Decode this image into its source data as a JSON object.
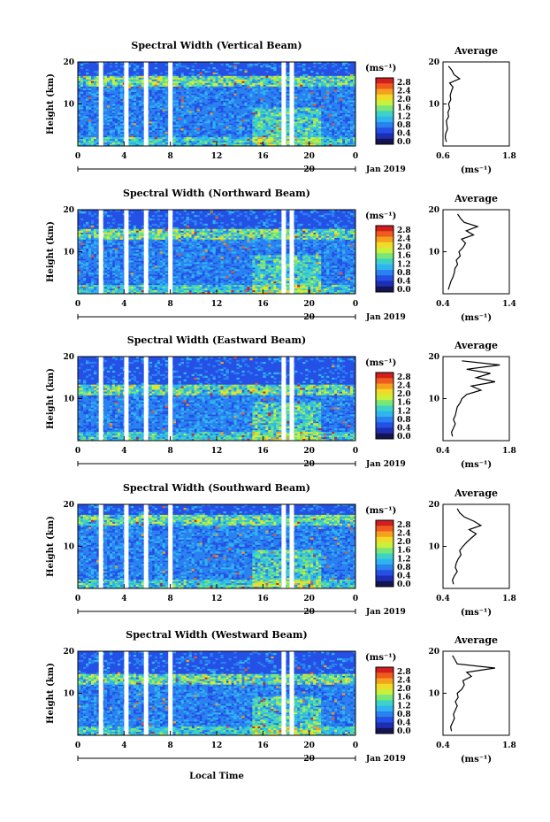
{
  "colors": {
    "scale": [
      "#141450",
      "#1e2eb4",
      "#2450e6",
      "#2a82f0",
      "#30b4f0",
      "#3cd2c8",
      "#78e678",
      "#c8f03c",
      "#f0dc28",
      "#f5a01e",
      "#ef5a1e",
      "#d21e1e"
    ]
  },
  "chart_data": [
    {
      "type": "heatmap",
      "title": "Spectral Width (Vertical Beam)",
      "ylabel": "Height (km)",
      "ylim": [
        0,
        20
      ],
      "yticks": [
        "20",
        "10"
      ],
      "xlim": [
        0,
        24
      ],
      "xticks": [
        "0",
        "4",
        "8",
        "12",
        "16",
        "20",
        "0"
      ],
      "date_tick": "20",
      "date_label": "Jan 2019",
      "colorbar_unit": "(ms⁻¹)",
      "colorbar_ticks": [
        "2.8",
        "2.4",
        "2.0",
        "1.6",
        "1.2",
        "0.8",
        "0.4",
        "0.0"
      ],
      "gaps": [
        2.0,
        4.2,
        5.9,
        8.0,
        17.8,
        18.5
      ],
      "clear_above": 16.5,
      "avg": {
        "title": "Average",
        "xlabel": "(ms⁻¹)",
        "xlim": [
          0.6,
          1.8
        ],
        "xticks": [
          "0.6",
          "1.8"
        ],
        "yticks": [
          "20",
          "10"
        ],
        "height": [
          1,
          2,
          3,
          4,
          5,
          6,
          7,
          8,
          9,
          10,
          11,
          12,
          13,
          14,
          15,
          16,
          17,
          18,
          19
        ],
        "width": [
          0.66,
          0.64,
          0.65,
          0.68,
          0.67,
          0.66,
          0.7,
          0.69,
          0.72,
          0.7,
          0.74,
          0.73,
          0.75,
          0.78,
          0.72,
          0.9,
          0.8,
          0.76,
          0.7
        ]
      }
    },
    {
      "type": "heatmap",
      "title": "Spectral Width (Northward Beam)",
      "ylabel": "Height (km)",
      "ylim": [
        0,
        20
      ],
      "yticks": [
        "20",
        "10"
      ],
      "xlim": [
        0,
        24
      ],
      "xticks": [
        "0",
        "4",
        "8",
        "12",
        "16",
        "20",
        "0"
      ],
      "date_tick": "20",
      "date_label": "Jan 2019",
      "colorbar_unit": "(ms⁻¹)",
      "colorbar_ticks": [
        "2.8",
        "2.4",
        "2.0",
        "1.6",
        "1.2",
        "0.8",
        "0.4",
        "0.0"
      ],
      "gaps": [
        2.0,
        4.2,
        5.9,
        8.0,
        17.8,
        18.5
      ],
      "clear_above": 15.5,
      "avg": {
        "title": "Average",
        "xlabel": "(ms⁻¹)",
        "xlim": [
          0.4,
          1.4
        ],
        "xticks": [
          "0.4",
          "1.4"
        ],
        "yticks": [
          "20",
          "10"
        ],
        "height": [
          1,
          2,
          3,
          4,
          5,
          6,
          7,
          8,
          9,
          10,
          11,
          12,
          13,
          14,
          15,
          16,
          17,
          18,
          19
        ],
        "width": [
          0.48,
          0.5,
          0.52,
          0.55,
          0.57,
          0.58,
          0.62,
          0.6,
          0.66,
          0.64,
          0.7,
          0.74,
          0.68,
          0.86,
          0.75,
          0.92,
          0.72,
          0.66,
          0.62
        ]
      }
    },
    {
      "type": "heatmap",
      "title": "Spectral Width (Eastward Beam)",
      "ylabel": "Height (km)",
      "ylim": [
        0,
        20
      ],
      "yticks": [
        "20",
        "10"
      ],
      "xlim": [
        0,
        24
      ],
      "xticks": [
        "0",
        "4",
        "8",
        "12",
        "16",
        "20",
        "0"
      ],
      "date_tick": "20",
      "date_label": "Jan 2019",
      "colorbar_unit": "(ms⁻¹)",
      "colorbar_ticks": [
        "2.8",
        "2.4",
        "2.0",
        "1.6",
        "1.2",
        "0.8",
        "0.4",
        "0.0"
      ],
      "gaps": [
        2.0,
        4.2,
        5.9,
        8.0,
        17.8,
        18.5
      ],
      "clear_above": 13.5,
      "avg": {
        "title": "Average",
        "xlabel": "(ms⁻¹)",
        "xlim": [
          0.4,
          1.8
        ],
        "xticks": [
          "0.4",
          "1.8"
        ],
        "yticks": [
          "20",
          "10"
        ],
        "height": [
          1,
          2,
          3,
          4,
          5,
          6,
          7,
          8,
          9,
          10,
          11,
          12,
          13,
          14,
          15,
          16,
          17,
          18,
          19
        ],
        "width": [
          0.6,
          0.58,
          0.62,
          0.66,
          0.62,
          0.66,
          0.68,
          0.7,
          0.76,
          0.8,
          0.9,
          1.2,
          1.0,
          1.5,
          1.1,
          1.4,
          0.9,
          1.6,
          0.8
        ]
      }
    },
    {
      "type": "heatmap",
      "title": "Spectral Width (Southward Beam)",
      "ylabel": "Height (km)",
      "ylim": [
        0,
        20
      ],
      "yticks": [
        "20",
        "10"
      ],
      "xlim": [
        0,
        24
      ],
      "xticks": [
        "0",
        "4",
        "8",
        "12",
        "16",
        "20",
        "0"
      ],
      "date_tick": "20",
      "date_label": "Jan 2019",
      "colorbar_unit": "(ms⁻¹)",
      "colorbar_ticks": [
        "2.8",
        "2.4",
        "2.0",
        "1.6",
        "1.2",
        "0.8",
        "0.4",
        "0.0"
      ],
      "gaps": [
        2.0,
        4.2,
        5.9,
        8.0,
        17.8,
        18.5
      ],
      "clear_above": 17.5,
      "avg": {
        "title": "Average",
        "xlabel": "(ms⁻¹)",
        "xlim": [
          0.4,
          1.8
        ],
        "xticks": [
          "0.4",
          "1.8"
        ],
        "yticks": [
          "20",
          "10"
        ],
        "height": [
          1,
          2,
          3,
          4,
          5,
          6,
          7,
          8,
          9,
          10,
          11,
          12,
          13,
          14,
          15,
          16,
          17,
          18,
          19
        ],
        "width": [
          0.62,
          0.6,
          0.64,
          0.7,
          0.66,
          0.68,
          0.72,
          0.78,
          0.75,
          0.82,
          0.9,
          1.0,
          1.1,
          0.95,
          1.2,
          1.05,
          0.85,
          0.75,
          0.7
        ]
      }
    },
    {
      "type": "heatmap",
      "title": "Spectral Width (Westward Beam)",
      "ylabel": "Height (km)",
      "ylim": [
        0,
        20
      ],
      "yticks": [
        "20",
        "10"
      ],
      "xlim": [
        0,
        24
      ],
      "xticks": [
        "0",
        "4",
        "8",
        "12",
        "16",
        "20",
        "0"
      ],
      "date_tick": "20",
      "date_label": "Jan 2019",
      "colorbar_unit": "(ms⁻¹)",
      "colorbar_ticks": [
        "2.8",
        "2.4",
        "2.0",
        "1.6",
        "1.2",
        "0.8",
        "0.4",
        "0.0"
      ],
      "gaps": [
        2.0,
        4.2,
        5.9,
        8.0,
        17.8,
        18.5
      ],
      "clear_above": 14.5,
      "avg": {
        "title": "Average",
        "xlabel": "(ms⁻¹)",
        "xlim": [
          0.4,
          1.8
        ],
        "xticks": [
          "0.4",
          "1.8"
        ],
        "yticks": [
          "20",
          "10"
        ],
        "height": [
          1,
          2,
          3,
          4,
          5,
          6,
          7,
          8,
          9,
          10,
          11,
          12,
          13,
          14,
          15,
          16,
          17,
          18,
          19
        ],
        "width": [
          0.58,
          0.56,
          0.6,
          0.64,
          0.62,
          0.66,
          0.7,
          0.66,
          0.72,
          0.7,
          0.8,
          0.85,
          0.82,
          1.0,
          0.9,
          1.5,
          0.7,
          0.65,
          0.6
        ]
      }
    }
  ],
  "xlabel_bottom": "Local Time"
}
